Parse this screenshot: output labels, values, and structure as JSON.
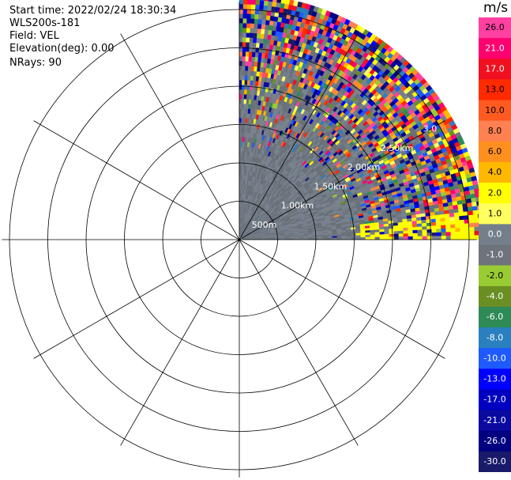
{
  "info": {
    "start_time": "Start time: 2022/02/24 18:30:34",
    "instrument": "WLS200s-181",
    "field": "Field: VEL",
    "elevation": "Elevation(deg): 0.00",
    "nrays": "NRays: 90"
  },
  "colorbar": {
    "unit": "m/s",
    "ticks": [
      "26.0",
      "21.0",
      "17.0",
      "13.0",
      "10.0",
      "8.0",
      "6.0",
      "4.0",
      "2.0",
      "1.0",
      "0.0",
      "-1.0",
      "-2.0",
      "-4.0",
      "-6.0",
      "-8.0",
      "-10.0",
      "-13.0",
      "-17.0",
      "-21.0",
      "-26.0",
      "-30.0"
    ],
    "colors": [
      "#ff40a0",
      "#ff0070",
      "#f01020",
      "#ff2a00",
      "#ff5a20",
      "#ff8050",
      "#ff9020",
      "#ffb800",
      "#ffff00",
      "#ffff60",
      "#757f8b",
      "#6e747c",
      "#99cc33",
      "#6b8e23",
      "#2e8b57",
      "#2a7fbf",
      "#1e5aff",
      "#0000ff",
      "#0000c0",
      "#0a0aa0",
      "#000080",
      "#1a1a6b"
    ]
  },
  "chart_data": {
    "type": "heatmap",
    "subtype": "radar-ppi",
    "field": "VEL",
    "units": "m/s",
    "range_labels": [
      "500m",
      "1.00km",
      "1.50km",
      "2.00km",
      "2.50km",
      "3.0"
    ],
    "range_rings_km": [
      0.5,
      1.0,
      1.5,
      2.0,
      2.5,
      3.0
    ],
    "azimuth_sector_deg": [
      0,
      90
    ],
    "n_rays": 90,
    "value_range": [
      -30,
      26
    ],
    "notes_description": "Data cover the NE quadrant; near ranges mostly near 0 m/s (grey), far ranges noisy with mixed positive/negative values."
  }
}
